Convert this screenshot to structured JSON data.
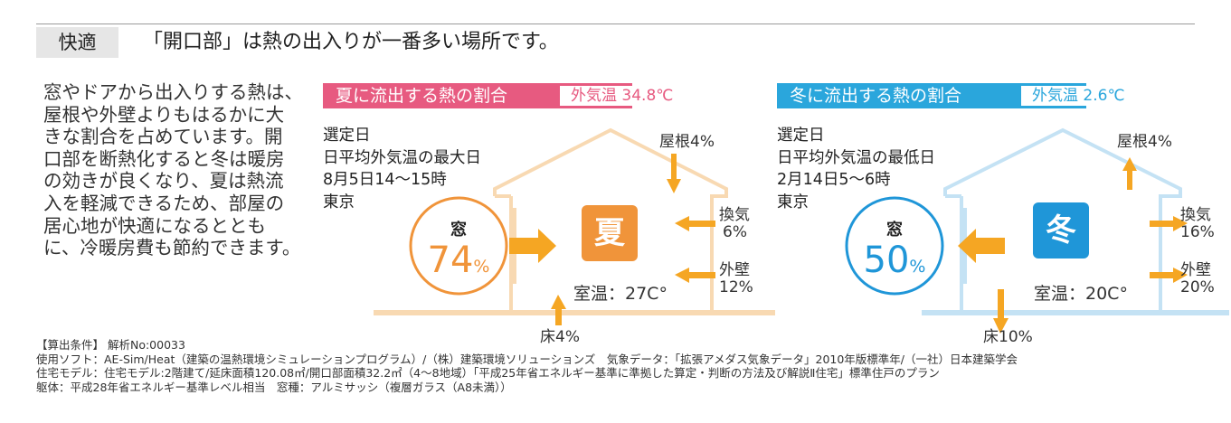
{
  "header": {
    "tag": "快適",
    "headline": "「開口部」は熱の出入りが一番多い場所です。"
  },
  "intro_lines": [
    "窓やドアから出入りする熱は、",
    "屋根や外壁よりもはるかに大",
    "きな割合を占めています。開",
    "口部を断熱化すると冬は暖房",
    "の効きが良くなり、夏は熱流",
    "入を軽減できるため、部屋の",
    "居心地が快適になるととも",
    "に、冷暖房費も節約できます。"
  ],
  "summer": {
    "title": "夏に流出する熱の割合",
    "outside_temp": "外気温 34.8℃",
    "info": [
      "選定日",
      "日平均外気温の最大日",
      "8月5日14～15時",
      "東京"
    ],
    "window_label": "窓",
    "window_value": "74",
    "percent_sign": "%",
    "season_char": "夏",
    "roof": "屋根4%",
    "vent": [
      "換気",
      "6%"
    ],
    "wall": [
      "外壁",
      "12%"
    ],
    "room_temp": "室温：27C°",
    "floor": "床4%",
    "colors": {
      "title_bg": "#e75a80",
      "accent": "#f0943a",
      "house": "#f8d9b2",
      "arrow": "#f5a623"
    }
  },
  "winter": {
    "title": "冬に流出する熱の割合",
    "outside_temp": "外気温 2.6℃",
    "info": [
      "選定日",
      "日平均外気温の最低日",
      "2月14日5～6時",
      "東京"
    ],
    "window_label": "窓",
    "window_value": "50",
    "percent_sign": "%",
    "season_char": "冬",
    "roof": "屋根4%",
    "vent": [
      "換気",
      "16%"
    ],
    "wall": [
      "外壁",
      "20%"
    ],
    "room_temp": "室温：20C°",
    "floor": "床10%",
    "colors": {
      "title_bg": "#2aa6dc",
      "accent": "#1f96d8",
      "house": "#c4e2f4",
      "arrow": "#f5a623"
    }
  },
  "notes": [
    "【算出条件】 解析No:00033",
    "使用ソフト：AE-Sim/Heat（建築の温熱環境シミュレーションプログラム）/（株）建築環境ソリューションズ　気象データ：「拡張アメダス気象データ」2010年版標準年/（一社）日本建築学会",
    "住宅モデル：住宅モデル:2階建て/延床面積120.08㎡/開口部面積32.2㎡（4～8地域）「平成25年省エネルギー基準に準拠した算定・判断の方法及び解説Ⅱ住宅」標準住戸のプラン",
    "躯体：平成28年省エネルギー基準レベル相当　窓種：アルミサッシ（複層ガラス（A8未満））"
  ]
}
